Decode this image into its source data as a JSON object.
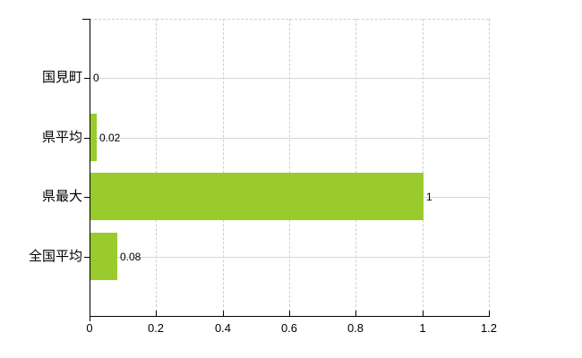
{
  "chart_data": {
    "type": "bar",
    "orientation": "horizontal",
    "title": "",
    "categories": [
      "国見町",
      "県平均",
      "県最大",
      "全国平均"
    ],
    "values": [
      0,
      0.02,
      1,
      0.08
    ],
    "value_labels": [
      "0",
      "0.02",
      "1",
      "0.08"
    ],
    "xlim": [
      0,
      1.2
    ],
    "x_ticks": [
      0,
      0.2,
      0.4,
      0.6,
      0.8,
      1,
      1.2
    ],
    "x_tick_labels": [
      "0",
      "0.2",
      "0.4",
      "0.6",
      "0.8",
      "1",
      "1.2"
    ],
    "grid": true,
    "legend": "none",
    "bar_color": "#9acb2d",
    "grid_color_horizontal": "#d2dbd2",
    "grid_color_vertical": "#cfcdd2",
    "axis_color": "#000000",
    "text_color": "#000000",
    "background_color": "#ffffff"
  }
}
